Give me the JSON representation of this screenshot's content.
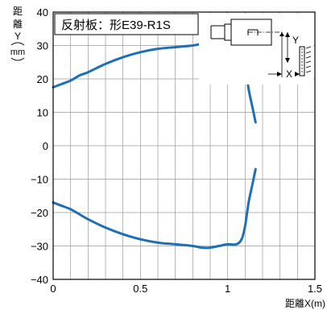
{
  "chart_data": {
    "type": "line",
    "title": "反射板：形E39-R1S",
    "xlabel": "距離X(m)",
    "ylabel_chars": [
      "距",
      "離",
      "Y"
    ],
    "ylabel_unit": "mm",
    "xlim": [
      0,
      1.5
    ],
    "ylim": [
      -40,
      40
    ],
    "xticks": [
      0,
      0.5,
      1,
      1.5
    ],
    "xtick_labels": [
      "0",
      "0.5",
      "1",
      "1.5"
    ],
    "yticks": [
      40,
      30,
      20,
      10,
      0,
      -10,
      -20,
      -30,
      -40
    ],
    "ytick_labels": [
      "40",
      "30",
      "20",
      "10",
      "0",
      "−10",
      "−20",
      "−30",
      "−40"
    ],
    "grid": true,
    "grid_minor_x_step": 0.1,
    "inset_labels": {
      "y": "Y",
      "x": "X"
    },
    "series": [
      {
        "x": [
          0,
          0.05,
          0.1,
          0.15,
          0.2,
          0.3,
          0.4,
          0.5,
          0.6,
          0.7,
          0.8,
          0.85,
          0.9,
          0.95,
          1.0,
          1.05,
          1.08,
          1.1,
          1.12,
          1.14,
          1.16
        ],
        "y": [
          17.5,
          18.5,
          19.5,
          21,
          22,
          24.5,
          26.5,
          28,
          29,
          29.5,
          30,
          30.5,
          30.5,
          30,
          29.5,
          29.5,
          28,
          24,
          17,
          12,
          7
        ]
      },
      {
        "x": [
          0,
          0.05,
          0.1,
          0.15,
          0.2,
          0.3,
          0.4,
          0.5,
          0.6,
          0.7,
          0.8,
          0.85,
          0.9,
          0.95,
          1.0,
          1.05,
          1.08,
          1.1,
          1.12,
          1.14,
          1.16
        ],
        "y": [
          -17,
          -18,
          -19,
          -20.5,
          -22,
          -24.5,
          -26.5,
          -28,
          -29,
          -29.5,
          -30,
          -30.5,
          -30.5,
          -30,
          -29.5,
          -29.5,
          -28,
          -24,
          -17,
          -12,
          -7
        ]
      }
    ],
    "colors": {
      "line": "#1f6fb5",
      "grid": "#9a9a9a",
      "axis": "#000000",
      "text": "#000000"
    }
  }
}
